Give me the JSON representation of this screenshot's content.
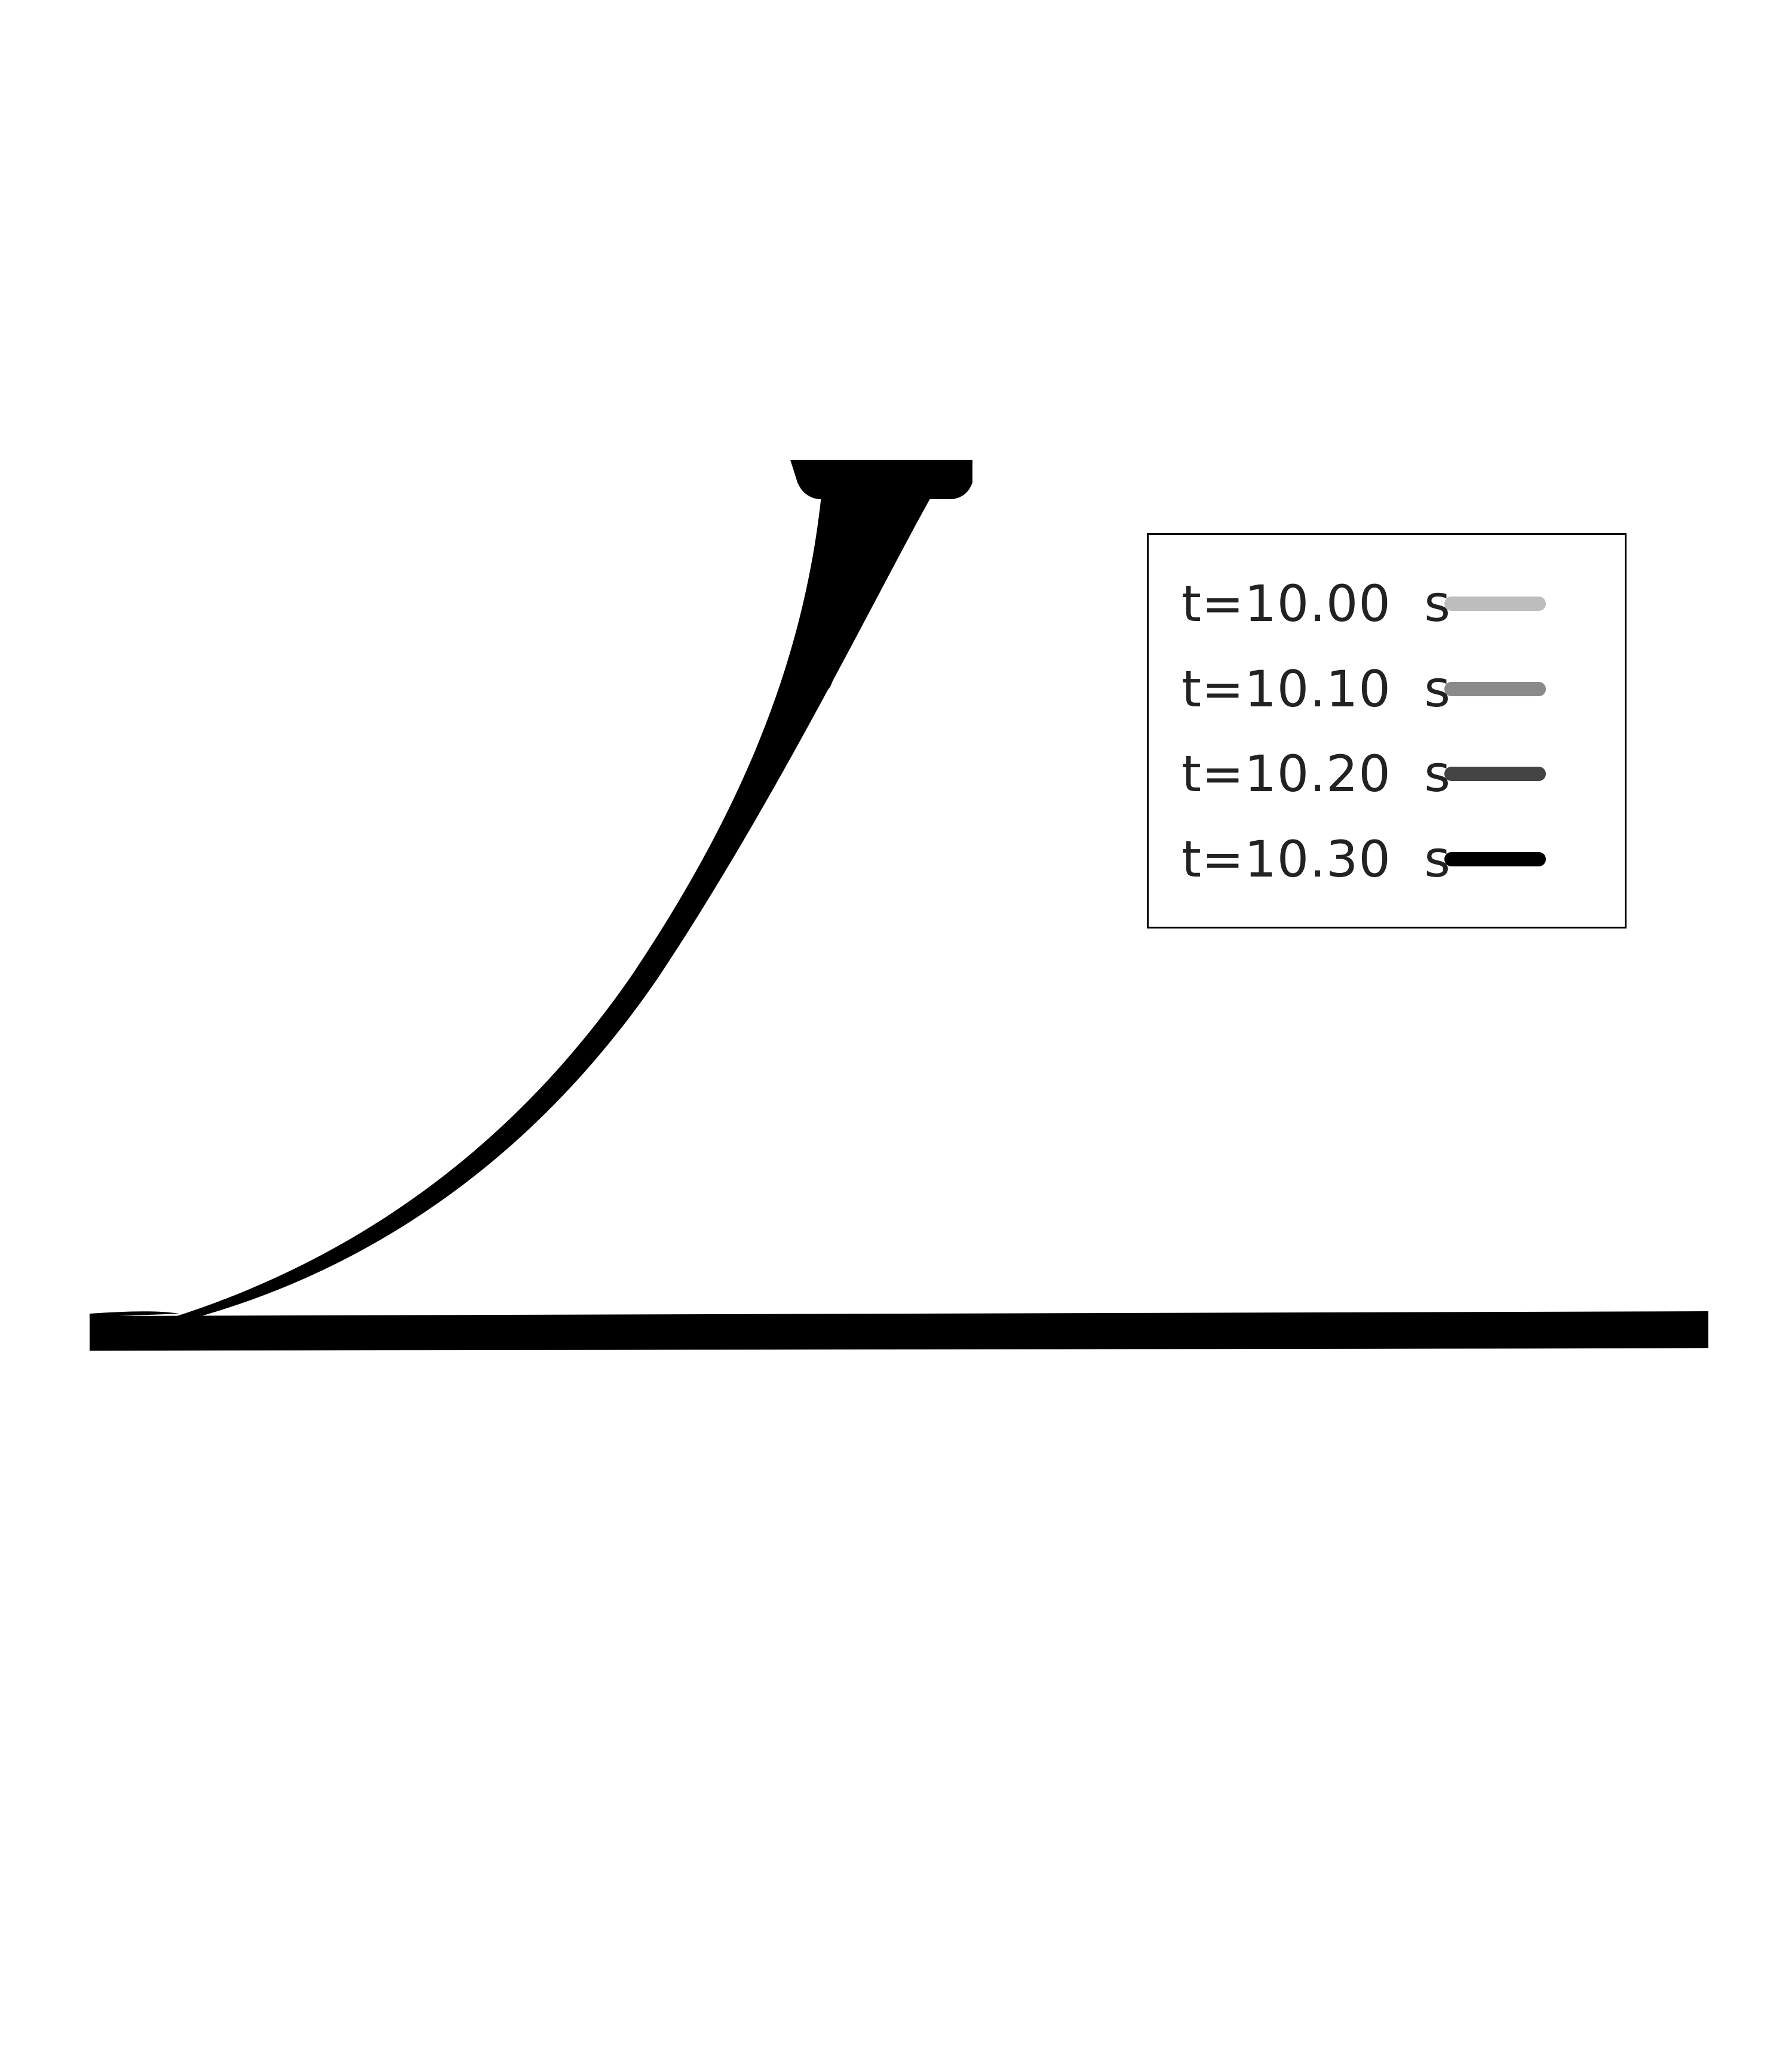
{
  "legend": {
    "entries": [
      {
        "label": "t=10.00  s",
        "color": "#bdbdbd"
      },
      {
        "label": "t=10.10  s",
        "color": "#8a8a8a"
      },
      {
        "label": "t=10.20  s",
        "color": "#444444"
      },
      {
        "label": "t=10.30  s",
        "color": "#000000"
      }
    ]
  },
  "colors": {
    "background": "#ffffff",
    "structure": "#000000"
  }
}
